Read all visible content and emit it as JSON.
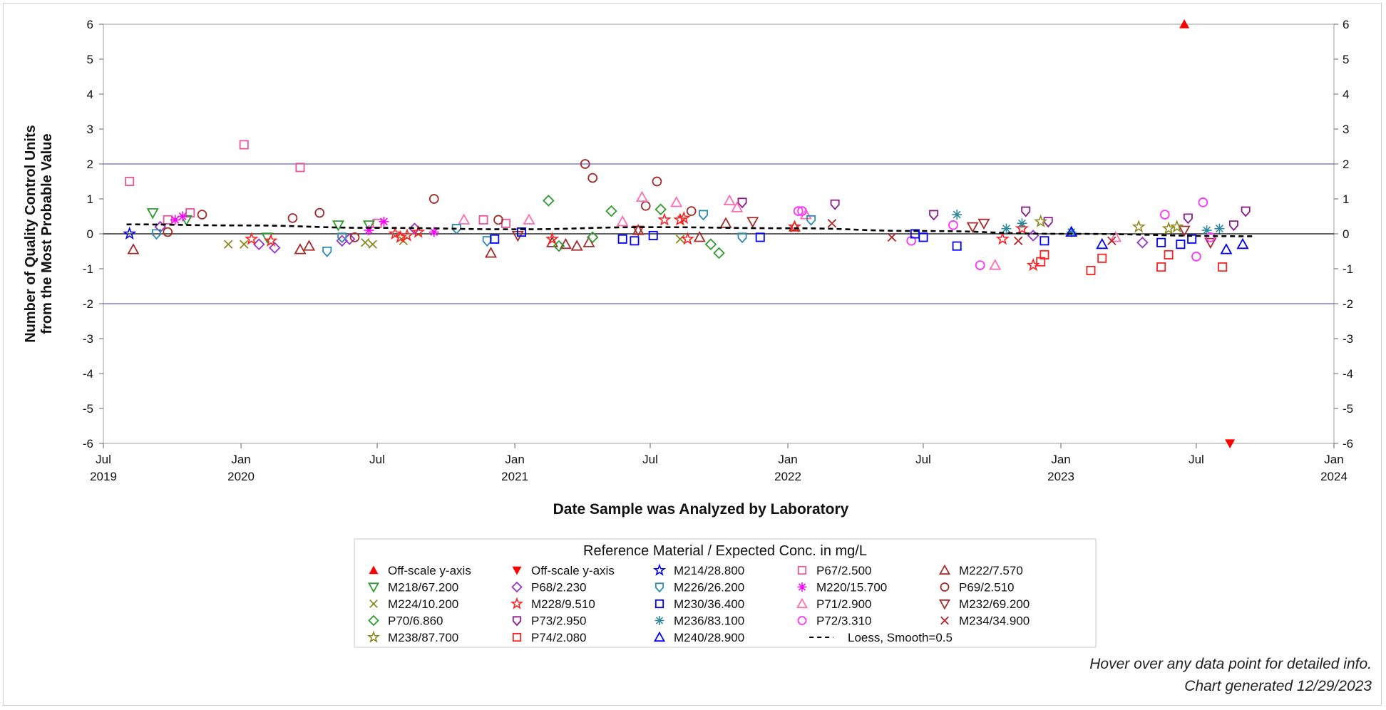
{
  "chart_data": {
    "type": "scatter",
    "ylabel_lines": [
      "Number of Quality Control Units",
      "from the Most Probable Value"
    ],
    "xlabel": "Date Sample was Analyzed by Laboratory",
    "ylim": [
      -6,
      6
    ],
    "yticks": [
      -6,
      -5,
      -4,
      -3,
      -2,
      -1,
      0,
      1,
      2,
      3,
      4,
      5,
      6
    ],
    "xlim": [
      "2019-07-01",
      "2024-01-01"
    ],
    "xticks": [
      {
        "date": "2019-07-01",
        "l1": "Jul",
        "l2": "2019"
      },
      {
        "date": "2020-01-01",
        "l1": "Jan",
        "l2": "2020"
      },
      {
        "date": "2020-07-01",
        "l1": "Jul",
        "l2": ""
      },
      {
        "date": "2021-01-01",
        "l1": "Jan",
        "l2": "2021"
      },
      {
        "date": "2021-07-01",
        "l1": "Jul",
        "l2": ""
      },
      {
        "date": "2022-01-01",
        "l1": "Jan",
        "l2": "2022"
      },
      {
        "date": "2022-07-01",
        "l1": "Jul",
        "l2": ""
      },
      {
        "date": "2023-01-01",
        "l1": "Jan",
        "l2": "2023"
      },
      {
        "date": "2023-07-01",
        "l1": "Jul",
        "l2": ""
      },
      {
        "date": "2024-01-01",
        "l1": "Jan",
        "l2": "2024"
      }
    ],
    "reference_lines": [
      2,
      -2
    ],
    "zero_line": 0,
    "grid": false,
    "legend_position": "bottom",
    "legend_title": "Reference Material / Expected Conc. in mg/L",
    "series": [
      {
        "name": "Off-scale y-axis",
        "marker": "tri-up-filled",
        "color": "#ff0000",
        "points": [
          [
            "2023-06-15",
            6
          ]
        ]
      },
      {
        "name": "Off-scale y-axis",
        "marker": "tri-down-filled",
        "color": "#ff0000",
        "points": [
          [
            "2023-08-15",
            -6
          ]
        ]
      },
      {
        "name": "M214/28.800",
        "marker": "star",
        "color": "#0000ff",
        "points": [
          [
            "2019-08-05",
            0.0
          ]
        ]
      },
      {
        "name": "P67/2.500",
        "marker": "square",
        "color": "#e7549f",
        "points": [
          [
            "2019-08-05",
            1.5
          ],
          [
            "2019-09-25",
            0.4
          ],
          [
            "2019-10-25",
            0.6
          ],
          [
            "2020-01-05",
            2.55
          ],
          [
            "2020-03-20",
            1.9
          ],
          [
            "2020-07-01",
            0.3
          ],
          [
            "2020-11-20",
            0.4
          ],
          [
            "2020-12-20",
            0.3
          ]
        ]
      },
      {
        "name": "M222/7.570",
        "marker": "tri-up",
        "color": "#a52a2a",
        "points": [
          [
            "2019-08-10",
            -0.45
          ],
          [
            "2020-03-20",
            -0.45
          ],
          [
            "2020-04-01",
            -0.35
          ],
          [
            "2020-11-30",
            -0.55
          ],
          [
            "2021-02-20",
            -0.25
          ],
          [
            "2021-03-10",
            -0.3
          ],
          [
            "2021-03-25",
            -0.35
          ],
          [
            "2021-04-10",
            -0.25
          ],
          [
            "2021-06-15",
            0.1
          ],
          [
            "2021-09-05",
            -0.1
          ],
          [
            "2021-10-10",
            0.3
          ],
          [
            "2022-01-10",
            0.2
          ]
        ]
      },
      {
        "name": "M218/67.200",
        "marker": "tri-down",
        "color": "#2e9b2e",
        "points": [
          [
            "2019-09-05",
            0.6
          ],
          [
            "2019-10-20",
            0.4
          ],
          [
            "2020-02-05",
            -0.1
          ],
          [
            "2020-05-10",
            0.25
          ],
          [
            "2020-06-20",
            0.25
          ]
        ]
      },
      {
        "name": "P68/2.230",
        "marker": "diamond",
        "color": "#9932cc",
        "points": [
          [
            "2019-09-15",
            0.2
          ],
          [
            "2020-01-25",
            -0.3
          ],
          [
            "2020-02-15",
            -0.4
          ],
          [
            "2020-05-15",
            -0.2
          ],
          [
            "2020-05-25",
            -0.15
          ],
          [
            "2020-08-20",
            0.15
          ],
          [
            "2022-11-25",
            -0.05
          ],
          [
            "2023-04-20",
            -0.25
          ]
        ]
      },
      {
        "name": "M220/15.700",
        "marker": "asterisk",
        "color": "#ff00ff",
        "points": [
          [
            "2019-10-05",
            0.4
          ],
          [
            "2019-10-15",
            0.5
          ],
          [
            "2020-06-20",
            0.1
          ],
          [
            "2020-07-10",
            0.35
          ],
          [
            "2020-09-15",
            0.05
          ]
        ]
      },
      {
        "name": "P69/2.510",
        "marker": "circle",
        "color": "#a52a2a",
        "points": [
          [
            "2019-09-25",
            0.05
          ],
          [
            "2019-11-10",
            0.55
          ],
          [
            "2020-03-10",
            0.45
          ],
          [
            "2020-04-15",
            0.6
          ],
          [
            "2020-06-01",
            -0.1
          ],
          [
            "2020-09-15",
            1.0
          ],
          [
            "2020-12-10",
            0.4
          ],
          [
            "2021-04-05",
            2.0
          ],
          [
            "2021-04-15",
            1.6
          ],
          [
            "2021-06-25",
            0.8
          ],
          [
            "2021-07-10",
            1.5
          ],
          [
            "2021-08-25",
            0.65
          ]
        ]
      },
      {
        "name": "M224/10.200",
        "marker": "x",
        "color": "#8a8a1e",
        "points": [
          [
            "2019-12-15",
            -0.3
          ],
          [
            "2020-01-05",
            -0.3
          ],
          [
            "2020-06-15",
            -0.25
          ],
          [
            "2020-06-25",
            -0.3
          ],
          [
            "2020-08-05",
            -0.2
          ],
          [
            "2021-08-10",
            -0.15
          ]
        ]
      },
      {
        "name": "M228/9.510",
        "marker": "star",
        "color": "#ff2020",
        "points": [
          [
            "2020-01-15",
            -0.15
          ],
          [
            "2020-02-10",
            -0.2
          ],
          [
            "2020-07-25",
            0.0
          ],
          [
            "2020-08-01",
            -0.1
          ],
          [
            "2020-08-10",
            -0.05
          ],
          [
            "2020-08-25",
            0.05
          ],
          [
            "2021-02-20",
            -0.15
          ],
          [
            "2021-07-20",
            0.4
          ],
          [
            "2021-08-10",
            0.4
          ],
          [
            "2021-08-15",
            0.45
          ],
          [
            "2021-08-20",
            -0.15
          ],
          [
            "2022-01-10",
            0.2
          ],
          [
            "2022-10-15",
            -0.15
          ],
          [
            "2022-11-10",
            0.15
          ],
          [
            "2022-11-25",
            -0.9
          ]
        ]
      },
      {
        "name": "M232/69.200",
        "marker": "tri-down",
        "color": "#a52a2a",
        "points": [
          [
            "2021-01-05",
            -0.05
          ],
          [
            "2021-06-15",
            0.1
          ],
          [
            "2021-11-15",
            0.35
          ],
          [
            "2022-09-05",
            0.2
          ],
          [
            "2022-09-20",
            0.3
          ],
          [
            "2023-06-15",
            0.1
          ],
          [
            "2023-07-20",
            -0.25
          ]
        ]
      },
      {
        "name": "P70/6.860",
        "marker": "diamond",
        "color": "#2e9b2e",
        "points": [
          [
            "2021-02-15",
            0.95
          ],
          [
            "2021-03-01",
            -0.35
          ],
          [
            "2021-04-15",
            -0.1
          ],
          [
            "2021-05-10",
            0.65
          ],
          [
            "2021-07-15",
            0.7
          ],
          [
            "2021-09-20",
            -0.3
          ],
          [
            "2021-10-01",
            -0.55
          ]
        ]
      },
      {
        "name": "P73/2.950",
        "marker": "shield",
        "color": "#8b1a8b",
        "points": [
          [
            "2021-11-01",
            0.9
          ],
          [
            "2022-03-05",
            0.85
          ],
          [
            "2022-07-15",
            0.55
          ],
          [
            "2022-11-15",
            0.65
          ],
          [
            "2022-12-15",
            0.35
          ],
          [
            "2023-06-20",
            0.45
          ],
          [
            "2023-08-20",
            0.25
          ],
          [
            "2023-09-05",
            0.65
          ]
        ]
      },
      {
        "name": "M236/83.100",
        "marker": "asterisk",
        "color": "#2e8b9b",
        "points": [
          [
            "2022-08-15",
            0.55
          ],
          [
            "2022-10-20",
            0.15
          ],
          [
            "2022-11-10",
            0.3
          ],
          [
            "2023-01-15",
            0.05
          ],
          [
            "2023-07-15",
            0.1
          ],
          [
            "2023-08-01",
            0.15
          ]
        ]
      },
      {
        "name": "P71/2.900",
        "marker": "tri-up",
        "color": "#ff6eb4",
        "points": [
          [
            "2020-10-25",
            0.4
          ],
          [
            "2021-01-20",
            0.4
          ],
          [
            "2021-05-25",
            0.35
          ],
          [
            "2021-06-20",
            1.05
          ],
          [
            "2021-08-05",
            0.9
          ],
          [
            "2021-10-15",
            0.95
          ],
          [
            "2021-10-25",
            0.75
          ],
          [
            "2022-01-25",
            0.55
          ],
          [
            "2022-10-05",
            -0.9
          ],
          [
            "2023-03-15",
            -0.1
          ]
        ]
      },
      {
        "name": "P72/3.310",
        "marker": "circle",
        "color": "#ff33ff",
        "points": [
          [
            "2022-01-15",
            0.65
          ],
          [
            "2022-01-20",
            0.65
          ],
          [
            "2022-06-15",
            -0.2
          ],
          [
            "2022-08-10",
            0.25
          ],
          [
            "2022-09-15",
            -0.9
          ],
          [
            "2023-05-20",
            0.55
          ],
          [
            "2023-07-01",
            -0.65
          ],
          [
            "2023-07-10",
            0.9
          ],
          [
            "2023-07-20",
            -0.1
          ]
        ]
      },
      {
        "name": "M234/34.900",
        "marker": "x",
        "color": "#b22222",
        "points": [
          [
            "2022-03-01",
            0.3
          ],
          [
            "2022-05-20",
            -0.1
          ],
          [
            "2022-11-05",
            -0.2
          ],
          [
            "2023-03-10",
            -0.2
          ]
        ]
      },
      {
        "name": "M238/87.700",
        "marker": "star",
        "color": "#8a8a1e",
        "points": [
          [
            "2022-12-05",
            0.35
          ],
          [
            "2023-04-15",
            0.2
          ],
          [
            "2023-05-25",
            0.15
          ],
          [
            "2023-06-05",
            0.2
          ]
        ]
      },
      {
        "name": "P74/2.080",
        "marker": "square",
        "color": "#ff2020",
        "points": [
          [
            "2022-12-10",
            -0.6
          ],
          [
            "2022-12-05",
            -0.8
          ],
          [
            "2023-02-10",
            -1.05
          ],
          [
            "2023-02-25",
            -0.7
          ],
          [
            "2023-05-15",
            -0.95
          ],
          [
            "2023-05-25",
            -0.6
          ],
          [
            "2023-08-05",
            -0.95
          ]
        ]
      },
      {
        "name": "M240/28.900",
        "marker": "tri-up",
        "color": "#0000ff",
        "points": [
          [
            "2023-01-15",
            0.05
          ],
          [
            "2023-02-25",
            -0.3
          ],
          [
            "2023-08-10",
            -0.45
          ],
          [
            "2023-09-01",
            -0.3
          ]
        ]
      },
      {
        "name": "M226/26.200",
        "marker": "shield",
        "color": "#2e8bb0",
        "points": [
          [
            "2019-09-10",
            0.0
          ],
          [
            "2020-04-25",
            -0.5
          ],
          [
            "2020-05-15",
            -0.1
          ],
          [
            "2020-10-15",
            0.15
          ],
          [
            "2020-11-25",
            -0.2
          ],
          [
            "2021-09-10",
            0.55
          ],
          [
            "2021-11-01",
            -0.1
          ],
          [
            "2022-02-01",
            0.4
          ]
        ]
      },
      {
        "name": "M230/36.400",
        "marker": "square",
        "color": "#0000ff",
        "points": [
          [
            "2020-12-05",
            -0.15
          ],
          [
            "2021-01-10",
            0.05
          ],
          [
            "2021-05-25",
            -0.15
          ],
          [
            "2021-06-10",
            -0.2
          ],
          [
            "2021-07-05",
            -0.05
          ],
          [
            "2021-11-25",
            -0.1
          ],
          [
            "2022-06-20",
            0.0
          ],
          [
            "2022-07-01",
            -0.1
          ],
          [
            "2022-08-15",
            -0.35
          ],
          [
            "2022-12-10",
            -0.2
          ],
          [
            "2023-05-15",
            -0.25
          ],
          [
            "2023-06-10",
            -0.3
          ],
          [
            "2023-06-25",
            -0.15
          ]
        ]
      }
    ],
    "loess": {
      "name": "Loess, Smooth=0.5",
      "color": "#000000",
      "points": [
        [
          "2019-08-01",
          0.27
        ],
        [
          "2020-01-01",
          0.24
        ],
        [
          "2020-07-01",
          0.17
        ],
        [
          "2021-01-01",
          0.13
        ],
        [
          "2021-07-01",
          0.19
        ],
        [
          "2022-01-01",
          0.16
        ],
        [
          "2022-07-01",
          0.08
        ],
        [
          "2023-01-01",
          0.0
        ],
        [
          "2023-09-15",
          -0.07
        ]
      ]
    }
  },
  "legend": {
    "title": "Reference Material / Expected Conc. in mg/L",
    "rows": [
      [
        [
          "tri-up-filled",
          "#ff0000",
          "Off-scale y-axis"
        ],
        [
          "tri-down-filled",
          "#ff0000",
          "Off-scale y-axis"
        ],
        [
          "star",
          "#0000ff",
          "M214/28.800"
        ],
        [
          "square",
          "#e7549f",
          "P67/2.500"
        ],
        [
          "tri-up",
          "#a52a2a",
          "M222/7.570"
        ]
      ],
      [
        [
          "tri-down",
          "#2e9b2e",
          "M218/67.200"
        ],
        [
          "diamond",
          "#9932cc",
          "P68/2.230"
        ],
        [
          "shield",
          "#2e8bb0",
          "M226/26.200"
        ],
        [
          "asterisk",
          "#ff00ff",
          "M220/15.700"
        ],
        [
          "circle",
          "#a52a2a",
          "P69/2.510"
        ]
      ],
      [
        [
          "x",
          "#8a8a1e",
          "M224/10.200"
        ],
        [
          "star",
          "#ff2020",
          "M228/9.510"
        ],
        [
          "square",
          "#0000ff",
          "M230/36.400"
        ],
        [
          "tri-up",
          "#ff6eb4",
          "P71/2.900"
        ],
        [
          "tri-down",
          "#a52a2a",
          "M232/69.200"
        ]
      ],
      [
        [
          "diamond",
          "#2e9b2e",
          "P70/6.860"
        ],
        [
          "shield",
          "#8b1a8b",
          "P73/2.950"
        ],
        [
          "asterisk",
          "#2e8b9b",
          "M236/83.100"
        ],
        [
          "circle",
          "#ff33ff",
          "P72/3.310"
        ],
        [
          "x",
          "#b22222",
          "M234/34.900"
        ]
      ],
      [
        [
          "star",
          "#8a8a1e",
          "M238/87.700"
        ],
        [
          "square",
          "#ff2020",
          "P74/2.080"
        ],
        [
          "tri-up",
          "#0000ff",
          "M240/28.900"
        ],
        [
          "dashed",
          "#000000",
          "Loess, Smooth=0.5"
        ]
      ]
    ]
  },
  "footnotes": {
    "hover": "Hover over any data point for detailed info.",
    "generated": "Chart generated 12/29/2023"
  },
  "colors": {
    "reference_line": "#7f7fd6",
    "axis": "#808080"
  }
}
